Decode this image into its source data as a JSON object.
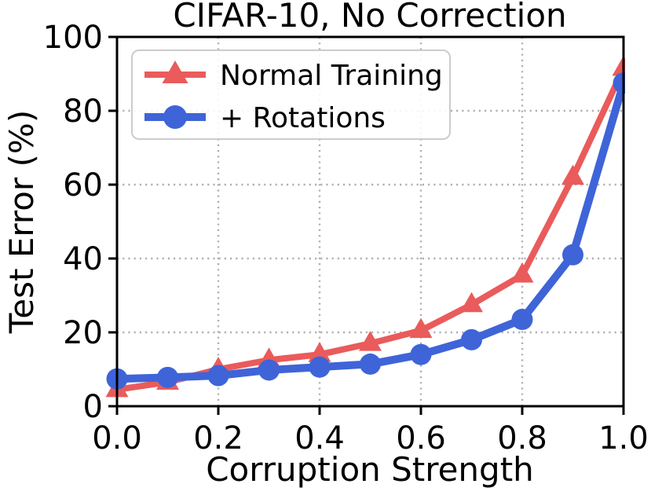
{
  "chart_data": {
    "type": "line",
    "title": "CIFAR-10, No Correction",
    "xlabel": "Corruption Strength",
    "ylabel": "Test Error (%)",
    "xlim": [
      0.0,
      1.0
    ],
    "ylim": [
      0,
      100
    ],
    "grid": "dotted",
    "legend_position": "upper-left",
    "xticks": {
      "values": [
        0.0,
        0.2,
        0.4,
        0.6,
        0.8,
        1.0
      ],
      "labels": [
        "0.0",
        "0.2",
        "0.4",
        "0.6",
        "0.8",
        "1.0"
      ]
    },
    "yticks": {
      "values": [
        0,
        20,
        40,
        60,
        80,
        100
      ],
      "labels": [
        "0",
        "20",
        "40",
        "60",
        "80",
        "100"
      ]
    },
    "x": [
      0.0,
      0.1,
      0.2,
      0.3,
      0.4,
      0.5,
      0.6,
      0.7,
      0.8,
      0.9,
      1.0
    ],
    "series": [
      {
        "name": "Normal Training",
        "color": "#ea5b5b",
        "marker": "triangle",
        "line_width": 8,
        "values": [
          4.5,
          6.5,
          10,
          12.5,
          14,
          17,
          20.5,
          27.5,
          35.5,
          62,
          91.5
        ]
      },
      {
        "name": "+ Rotations",
        "color": "#3e64d8",
        "marker": "circle",
        "line_width": 10,
        "values": [
          7.4,
          7.8,
          8.3,
          9.8,
          10.6,
          11.4,
          14,
          18,
          23.5,
          41,
          87.5
        ]
      }
    ],
    "colors": {
      "grid": "#b0b0b0",
      "spine": "#000000",
      "legend_border": "#cccccc",
      "legend_bg": "#ffffff"
    }
  }
}
